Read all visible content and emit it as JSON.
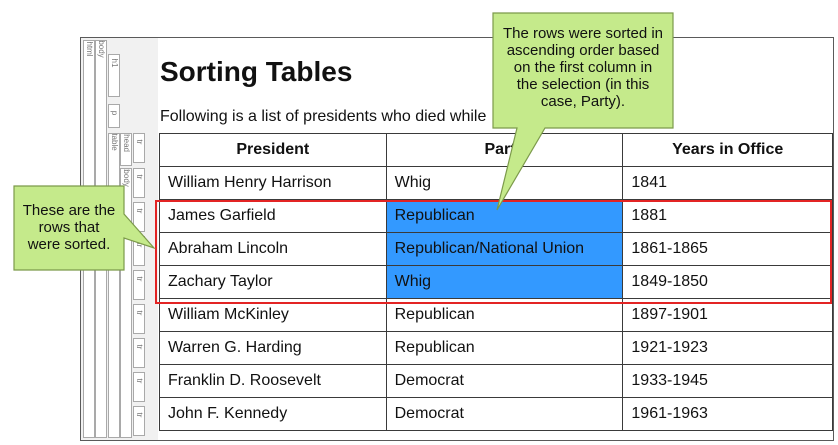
{
  "tags": {
    "html": "html",
    "body": "body",
    "h1": "h1",
    "p": "p",
    "table": "table",
    "thead": "thead",
    "tbody": "tbody",
    "tr": "tr"
  },
  "heading": "Sorting Tables",
  "intro": "Following is a list of presidents who died while",
  "table": {
    "headers": [
      "President",
      "Party",
      "Years in Office"
    ],
    "rows": [
      {
        "president": "William Henry Harrison",
        "party": "Whig",
        "years": "1841"
      },
      {
        "president": "James Garfield",
        "party": "Republican",
        "years": "1881"
      },
      {
        "president": "Abraham Lincoln",
        "party": "Republican/National Union",
        "years": "1861-1865"
      },
      {
        "president": "Zachary Taylor",
        "party": "Whig",
        "years": "1849-1850"
      },
      {
        "president": "William McKinley",
        "party": "Republican",
        "years": "1897-1901"
      },
      {
        "president": "Warren G. Harding",
        "party": "Republican",
        "years": "1921-1923"
      },
      {
        "president": "Franklin D. Roosevelt",
        "party": "Democrat",
        "years": "1933-1945"
      },
      {
        "president": "John F. Kennedy",
        "party": "Democrat",
        "years": "1961-1963"
      }
    ],
    "selected_rows": [
      1,
      2,
      3
    ],
    "selection_color": "#3399ff"
  },
  "callouts": {
    "sorted_rows": {
      "lines": [
        "These are the",
        "rows that",
        "were sorted."
      ]
    },
    "sort_explanation": {
      "lines": [
        "The rows were sorted in",
        "ascending order based",
        "on the first column in",
        "the selection (in this",
        "case, Party)."
      ]
    }
  },
  "colors": {
    "callout_fill": "#c5ea8b",
    "callout_border": "#7c9a4b",
    "highlight_border": "#e32424",
    "frame_border": "#5a5a5a"
  }
}
